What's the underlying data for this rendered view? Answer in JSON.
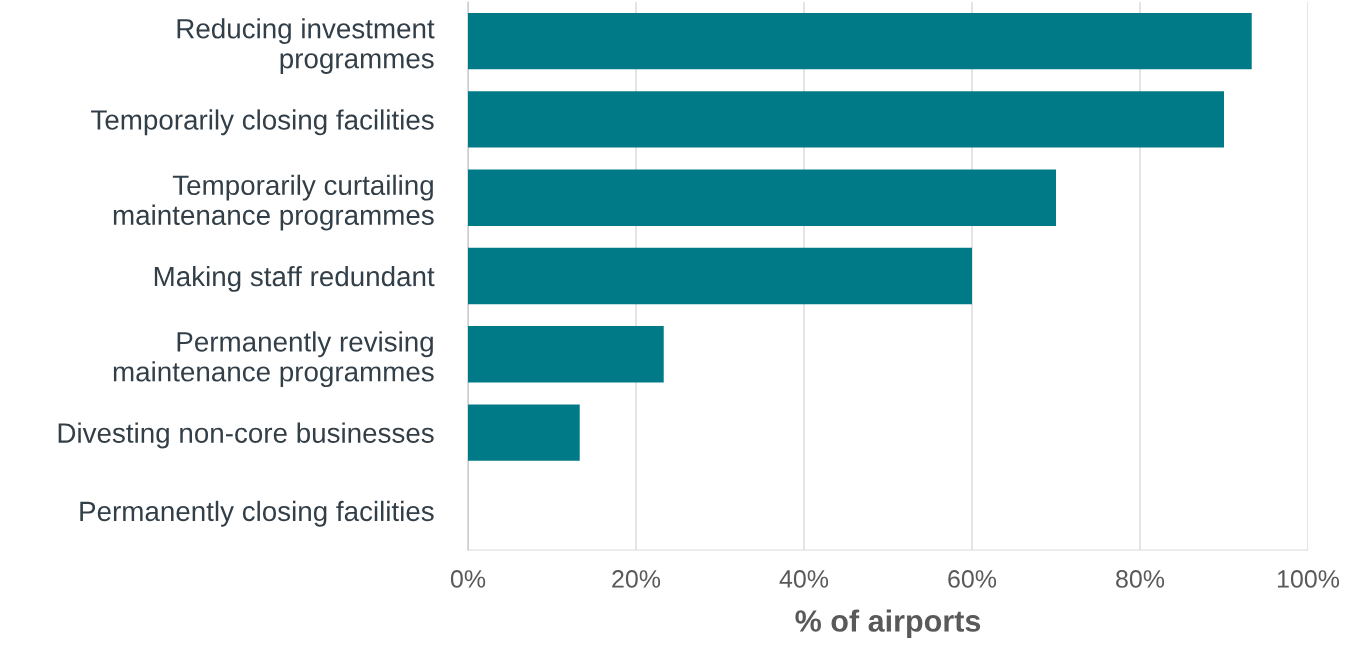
{
  "chart_data": {
    "type": "bar",
    "orientation": "horizontal",
    "xlabel": "% of airports",
    "categories": [
      "Reducing investment\nprogrammes",
      "Temporarily closing facilities",
      "Temporarily curtailing\nmaintenance programmes",
      "Making staff redundant",
      "Permanently revising\nmaintenance programmes",
      "Divesting non-core businesses",
      "Permanently closing facilities"
    ],
    "values": [
      93.3,
      90,
      70,
      60,
      23.3,
      13.3,
      0
    ],
    "color": "#007a87",
    "xlim": [
      0,
      100
    ],
    "xticks": [
      {
        "value": 0,
        "label": "0%"
      },
      {
        "value": 20,
        "label": "20%"
      },
      {
        "value": 40,
        "label": "40%"
      },
      {
        "value": 60,
        "label": "60%"
      },
      {
        "value": 80,
        "label": "80%"
      },
      {
        "value": 100,
        "label": "100%"
      }
    ],
    "grid": "x"
  }
}
